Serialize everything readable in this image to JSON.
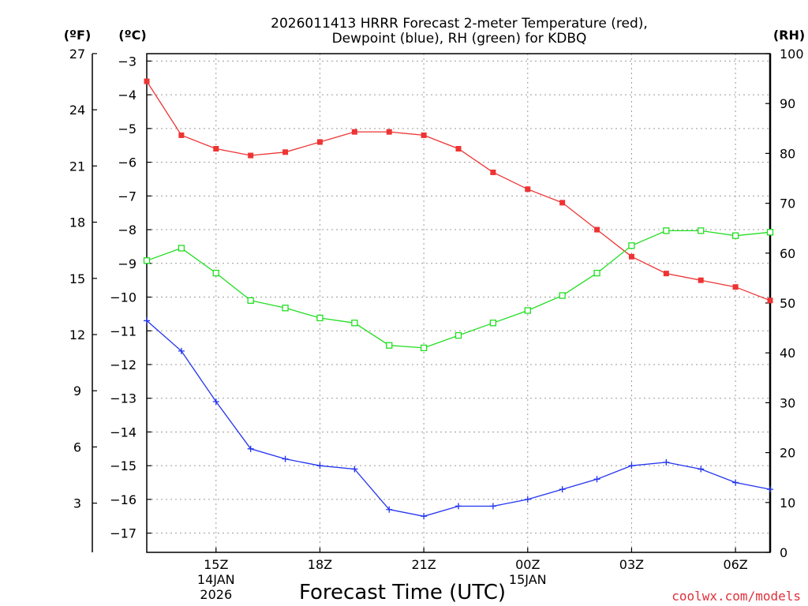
{
  "chart_data": {
    "type": "line",
    "title_line1": "2026011413 HRRR Forecast 2-meter Temperature (red),",
    "title_line2": "Dewpoint (blue), RH (green) for KDBQ",
    "left_unit_f": "(ºF)",
    "left_unit_c": "(ºC)",
    "right_unit": "(RH)",
    "xlabel": "Forecast Time (UTC)",
    "credit": "coolwx.com/models",
    "x_range": [
      13,
      31
    ],
    "celsius_range": [
      -17.57,
      -2.78
    ],
    "rh_range": [
      0,
      100
    ],
    "celsius_ticks": [
      -3,
      -4,
      -5,
      -6,
      -7,
      -8,
      -9,
      -10,
      -11,
      -12,
      -13,
      -14,
      -15,
      -16,
      -17
    ],
    "celsius_tick_labels": [
      "−3",
      "−4",
      "−5",
      "−6",
      "−7",
      "−8",
      "−9",
      "−10",
      "−11",
      "−12",
      "−13",
      "−14",
      "−15",
      "−16",
      "−17"
    ],
    "fahrenheit_ticks": [
      27,
      24,
      21,
      18,
      15,
      12,
      9,
      6,
      3
    ],
    "fahrenheit_tick_labels": [
      "27",
      "24",
      "21",
      "18",
      "15",
      "12",
      "9",
      "6",
      "3"
    ],
    "rh_ticks": [
      100,
      90,
      80,
      70,
      60,
      50,
      40,
      30,
      20,
      10,
      0
    ],
    "rh_tick_labels": [
      "100",
      "90",
      "80",
      "70",
      "60",
      "50",
      "40",
      "30",
      "20",
      "10",
      "0"
    ],
    "x_ticks": [
      {
        "x": 15,
        "label": "15Z",
        "sub1": "14JAN",
        "sub2": "2026"
      },
      {
        "x": 18,
        "label": "18Z",
        "sub1": "",
        "sub2": ""
      },
      {
        "x": 21,
        "label": "21Z",
        "sub1": "",
        "sub2": ""
      },
      {
        "x": 24,
        "label": "00Z",
        "sub1": "15JAN",
        "sub2": ""
      },
      {
        "x": 27,
        "label": "03Z",
        "sub1": "",
        "sub2": ""
      },
      {
        "x": 30,
        "label": "06Z",
        "sub1": "",
        "sub2": ""
      }
    ],
    "x": [
      13,
      14,
      15,
      16,
      17,
      18,
      19,
      20,
      21,
      22,
      23,
      24,
      25,
      26,
      27,
      28,
      29,
      30,
      31
    ],
    "series": [
      {
        "name": "Temperature",
        "color": "#ee3333",
        "axis": "celsius",
        "marker": "filled-square",
        "values": [
          -3.6,
          -5.2,
          -5.6,
          -5.8,
          -5.7,
          -5.4,
          -5.1,
          -5.1,
          -5.2,
          -5.6,
          -6.3,
          -6.8,
          -7.2,
          -8.0,
          -8.8,
          -9.3,
          -9.5,
          -9.7,
          -10.1
        ]
      },
      {
        "name": "Dewpoint",
        "color": "#2233ee",
        "axis": "celsius",
        "marker": "plus",
        "values": [
          -10.7,
          -11.6,
          -13.1,
          -14.5,
          -14.8,
          -15.0,
          -15.1,
          -16.3,
          -16.5,
          -16.2,
          -16.2,
          -16.0,
          -15.7,
          -15.4,
          -15.0,
          -14.9,
          -15.1,
          -15.5,
          -15.7
        ]
      },
      {
        "name": "RH",
        "color": "#22dd22",
        "axis": "rh",
        "marker": "open-square",
        "values": [
          58.5,
          61,
          56,
          50.5,
          49,
          47,
          46,
          41.5,
          41,
          43.5,
          46,
          48.5,
          51.5,
          56,
          61.5,
          64.5,
          64.5,
          63.5,
          64.2
        ]
      }
    ]
  }
}
